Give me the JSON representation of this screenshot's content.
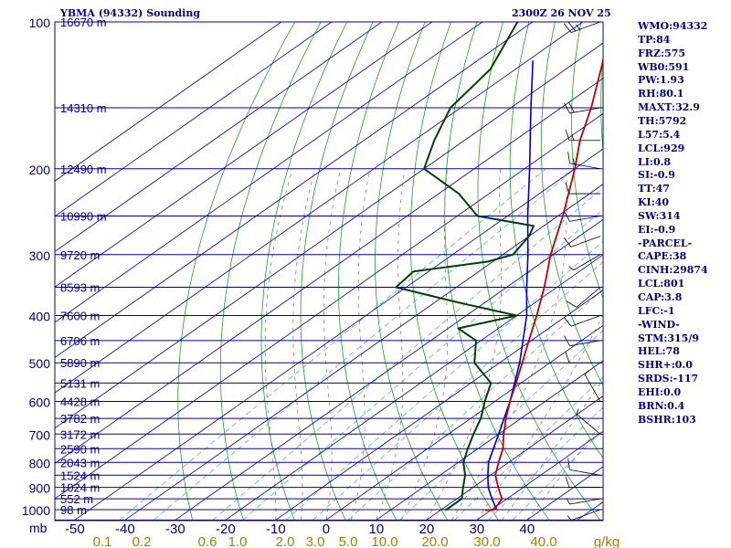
{
  "header": {
    "title": "YBMA (94332) Sounding",
    "datetime": "2300Z 26 NOV 25"
  },
  "stats": [
    "WMO:94332",
    "TP:84",
    "FRZ:575",
    "WB0:591",
    "PW:1.93",
    "RH:80.1",
    "MAXT:32.9",
    "TH:5792",
    "L57:5.4",
    "LCL:929",
    "LI:0.8",
    "SI:-0.9",
    "TT:47",
    "KI:40",
    "SW:314",
    "EI:-0.9",
    "-PARCEL-",
    "CAPE:38",
    "CINH:29874",
    "LCL:801",
    "CAP:3.8",
    "LFC:-1",
    "-WIND-",
    "STM:315/9",
    "HEL:78",
    "SHR+:0.0",
    "SRDS:-117",
    "EHI:0.0",
    "BRN:0.4",
    "BSHR:103"
  ],
  "colors": {
    "isobar": "#0000a0",
    "isotherm": "#1010c0",
    "dry_adiabat": "#20a020",
    "moist_adiabat": "#707070",
    "mixing_ratio": "#40a0d0",
    "temperature": "#c00000",
    "dewpoint": "#004000",
    "parcel": "#0000c0",
    "text": "#000080",
    "mixing_label": "#a08000"
  },
  "chart_data": {
    "type": "skew-t",
    "pressure_axis_unit": "mb",
    "temperature_axis_unit": "",
    "mixing_ratio_unit": "g/kg",
    "pressure_levels": [
      100,
      200,
      300,
      400,
      500,
      600,
      700,
      800,
      900,
      1000
    ],
    "isotherm_ticks": [
      -50,
      -40,
      -30,
      -20,
      -10,
      0,
      10,
      20,
      30,
      40
    ],
    "mixing_ratio_ticks": [
      "0.1",
      "0.2",
      "0.6",
      "1.0",
      "2.0",
      "3.0",
      "5.0",
      "10.0",
      "20.0",
      "30.0",
      "40.0"
    ],
    "heights": [
      {
        "p": 100,
        "label": "16670 m"
      },
      {
        "p": 150,
        "label": "14310 m"
      },
      {
        "p": 200,
        "label": "12490 m"
      },
      {
        "p": 250,
        "label": "10990 m"
      },
      {
        "p": 300,
        "label": "9720 m"
      },
      {
        "p": 350,
        "label": "8593 m"
      },
      {
        "p": 400,
        "label": "7600 m"
      },
      {
        "p": 450,
        "label": "6706 m"
      },
      {
        "p": 500,
        "label": "5890 m"
      },
      {
        "p": 550,
        "label": "5131 m"
      },
      {
        "p": 600,
        "label": "4428 m"
      },
      {
        "p": 650,
        "label": "3782 m"
      },
      {
        "p": 700,
        "label": "3172 m"
      },
      {
        "p": 750,
        "label": "2590 m"
      },
      {
        "p": 800,
        "label": "2043 m"
      },
      {
        "p": 850,
        "label": "1524 m"
      },
      {
        "p": 900,
        "label": "1024 m"
      },
      {
        "p": 950,
        "label": "552 m"
      },
      {
        "p": 1000,
        "label": "98 m"
      }
    ],
    "temperature": [
      {
        "p": 1004,
        "t": 29.0
      },
      {
        "p": 1000,
        "t": 30.5
      },
      {
        "p": 950,
        "t": 29.0
      },
      {
        "p": 925,
        "t": 27.0
      },
      {
        "p": 900,
        "t": 25.0
      },
      {
        "p": 850,
        "t": 21.0
      },
      {
        "p": 800,
        "t": 18.0
      },
      {
        "p": 750,
        "t": 15.0
      },
      {
        "p": 700,
        "t": 11.0
      },
      {
        "p": 650,
        "t": 7.0
      },
      {
        "p": 600,
        "t": 3.0
      },
      {
        "p": 550,
        "t": -1.0
      },
      {
        "p": 500,
        "t": -5.5
      },
      {
        "p": 450,
        "t": -10.5
      },
      {
        "p": 400,
        "t": -16.0
      },
      {
        "p": 350,
        "t": -22.5
      },
      {
        "p": 300,
        "t": -30.5
      },
      {
        "p": 250,
        "t": -39.0
      },
      {
        "p": 200,
        "t": -50.0
      },
      {
        "p": 175,
        "t": -57.0
      },
      {
        "p": 150,
        "t": -64.0
      },
      {
        "p": 125,
        "t": -73.0
      },
      {
        "p": 100,
        "t": -84.0
      }
    ],
    "dewpoint": [
      {
        "p": 1004,
        "t": 21.0
      },
      {
        "p": 1000,
        "t": 21.0
      },
      {
        "p": 950,
        "t": 21.0
      },
      {
        "p": 900,
        "t": 18.0
      },
      {
        "p": 850,
        "t": 15.0
      },
      {
        "p": 800,
        "t": 11.0
      },
      {
        "p": 750,
        "t": 8.0
      },
      {
        "p": 700,
        "t": 5.0
      },
      {
        "p": 650,
        "t": 2.0
      },
      {
        "p": 600,
        "t": -2.0
      },
      {
        "p": 550,
        "t": -6.0
      },
      {
        "p": 500,
        "t": -15.0
      },
      {
        "p": 450,
        "t": -21.0
      },
      {
        "p": 425,
        "t": -28.0
      },
      {
        "p": 400,
        "t": -20.0
      },
      {
        "p": 375,
        "t": -36.0
      },
      {
        "p": 350,
        "t": -52.0
      },
      {
        "p": 325,
        "t": -53.0
      },
      {
        "p": 310,
        "t": -41.0
      },
      {
        "p": 300,
        "t": -38.0
      },
      {
        "p": 275,
        "t": -40.0
      },
      {
        "p": 262,
        "t": -42.0
      },
      {
        "p": 250,
        "t": -56.0
      },
      {
        "p": 225,
        "t": -66.0
      },
      {
        "p": 200,
        "t": -80.0
      },
      {
        "p": 175,
        "t": -86.0
      },
      {
        "p": 150,
        "t": -92.0
      },
      {
        "p": 125,
        "t": -95.0
      },
      {
        "p": 100,
        "t": -103.0
      }
    ],
    "parcel": [
      {
        "p": 1000,
        "t": 31.0
      },
      {
        "p": 950,
        "t": 27.0
      },
      {
        "p": 900,
        "t": 23.0
      },
      {
        "p": 850,
        "t": 19.5
      },
      {
        "p": 800,
        "t": 16.0
      },
      {
        "p": 700,
        "t": 10.0
      },
      {
        "p": 600,
        "t": 3.0
      },
      {
        "p": 500,
        "t": -6.0
      },
      {
        "p": 400,
        "t": -18.0
      },
      {
        "p": 350,
        "t": -26.0
      },
      {
        "p": 300,
        "t": -35.0
      },
      {
        "p": 250,
        "t": -46.0
      },
      {
        "p": 200,
        "t": -59.0
      },
      {
        "p": 150,
        "t": -76.0
      },
      {
        "p": 120,
        "t": -89.0
      }
    ],
    "wind_barbs": [
      {
        "p": 100,
        "dir": 250,
        "spd": 25
      },
      {
        "p": 150,
        "dir": 260,
        "spd": 20
      },
      {
        "p": 175,
        "dir": 270,
        "spd": 15
      },
      {
        "p": 200,
        "dir": 280,
        "spd": 15
      },
      {
        "p": 225,
        "dir": 270,
        "spd": 10
      },
      {
        "p": 250,
        "dir": 260,
        "spd": 10
      },
      {
        "p": 275,
        "dir": 250,
        "spd": 10
      },
      {
        "p": 300,
        "dir": 240,
        "spd": 5
      },
      {
        "p": 350,
        "dir": 230,
        "spd": 10
      },
      {
        "p": 400,
        "dir": 250,
        "spd": 10
      },
      {
        "p": 450,
        "dir": 260,
        "spd": 10
      },
      {
        "p": 500,
        "dir": 270,
        "spd": 10
      },
      {
        "p": 600,
        "dir": 330,
        "spd": 5
      },
      {
        "p": 700,
        "dir": 310,
        "spd": 5
      },
      {
        "p": 850,
        "dir": 280,
        "spd": 10
      },
      {
        "p": 900,
        "dir": 270,
        "spd": 10
      },
      {
        "p": 950,
        "dir": 260,
        "spd": 5
      },
      {
        "p": 1000,
        "dir": 250,
        "spd": 5
      }
    ]
  }
}
